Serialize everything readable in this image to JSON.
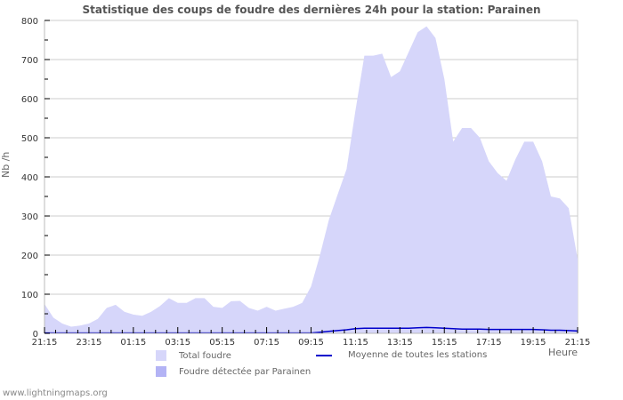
{
  "header": {
    "title": "Statistique des coups de foudre des dernières 24h pour la station: Parainen"
  },
  "axes": {
    "ylabel": "Nb /h",
    "xlabel": "Heure",
    "yticks": [
      0,
      100,
      200,
      300,
      400,
      500,
      600,
      700,
      800
    ],
    "xticks": [
      "21:15",
      "23:15",
      "01:15",
      "03:15",
      "05:15",
      "07:15",
      "09:15",
      "11:15",
      "13:15",
      "15:15",
      "17:15",
      "19:15",
      "21:15"
    ]
  },
  "legend": {
    "total": "Total foudre",
    "detected": "Foudre détectée par Parainen",
    "average": "Moyenne de toutes les stations"
  },
  "colors": {
    "total_fill": "#d6d6fa",
    "detected_fill": "#b3b3f5",
    "average_line": "#0000cc",
    "grid": "#cccccc"
  },
  "footer": {
    "credit": "www.lightningmaps.org"
  },
  "chart_data": {
    "type": "area",
    "title": "Statistique des coups de foudre des dernières 24h pour la station: Parainen",
    "xlabel": "Heure",
    "ylabel": "Nb /h",
    "ylim": [
      0,
      800
    ],
    "grid": true,
    "legend_position": "bottom",
    "x": [
      "21:15",
      "21:39",
      "22:03",
      "22:27",
      "22:51",
      "23:15",
      "23:39",
      "00:03",
      "00:27",
      "00:51",
      "01:15",
      "01:39",
      "02:03",
      "02:27",
      "02:51",
      "03:15",
      "03:39",
      "04:03",
      "04:27",
      "04:51",
      "05:15",
      "05:39",
      "06:03",
      "06:27",
      "06:51",
      "07:15",
      "07:39",
      "08:03",
      "08:27",
      "08:51",
      "09:15",
      "09:39",
      "10:03",
      "10:27",
      "10:51",
      "11:15",
      "11:39",
      "12:03",
      "12:27",
      "12:51",
      "13:15",
      "13:39",
      "14:03",
      "14:27",
      "14:51",
      "15:15",
      "15:39",
      "16:03",
      "16:27",
      "16:51",
      "17:15",
      "17:39",
      "18:03",
      "18:27",
      "18:51",
      "19:15",
      "19:39",
      "20:03",
      "20:27",
      "20:51",
      "21:15"
    ],
    "series": [
      {
        "name": "Total foudre",
        "values": [
          75,
          40,
          25,
          17,
          20,
          25,
          37,
          65,
          73,
          55,
          48,
          45,
          55,
          70,
          90,
          78,
          78,
          90,
          90,
          68,
          65,
          82,
          83,
          65,
          58,
          68,
          58,
          63,
          68,
          78,
          120,
          200,
          290,
          355,
          420,
          570,
          710,
          710,
          715,
          655,
          670,
          720,
          770,
          785,
          755,
          650,
          490,
          525,
          525,
          500,
          440,
          410,
          390,
          445,
          490,
          490,
          440,
          350,
          345,
          320,
          190
        ]
      },
      {
        "name": "Foudre détectée par Parainen",
        "values": [
          0,
          0,
          0,
          0,
          0,
          0,
          0,
          0,
          0,
          0,
          0,
          0,
          0,
          0,
          0,
          0,
          0,
          0,
          0,
          0,
          0,
          0,
          0,
          0,
          0,
          0,
          0,
          0,
          0,
          0,
          0,
          0,
          0,
          0,
          0,
          0,
          0,
          0,
          0,
          0,
          0,
          0,
          0,
          0,
          0,
          0,
          0,
          0,
          0,
          0,
          0,
          0,
          0,
          0,
          0,
          0,
          0,
          0,
          0,
          0,
          0
        ]
      },
      {
        "name": "Moyenne de toutes les stations",
        "values": [
          1,
          1,
          1,
          1,
          1,
          1,
          1,
          1,
          1,
          1,
          1,
          1,
          1,
          1,
          1,
          1,
          1,
          1,
          1,
          1,
          1,
          1,
          1,
          1,
          1,
          1,
          1,
          1,
          1,
          1,
          1,
          3,
          5,
          7,
          9,
          12,
          13,
          13,
          13,
          13,
          13,
          13,
          14,
          15,
          14,
          13,
          12,
          11,
          11,
          11,
          10,
          10,
          10,
          10,
          10,
          10,
          9,
          8,
          8,
          7,
          6
        ]
      }
    ]
  }
}
